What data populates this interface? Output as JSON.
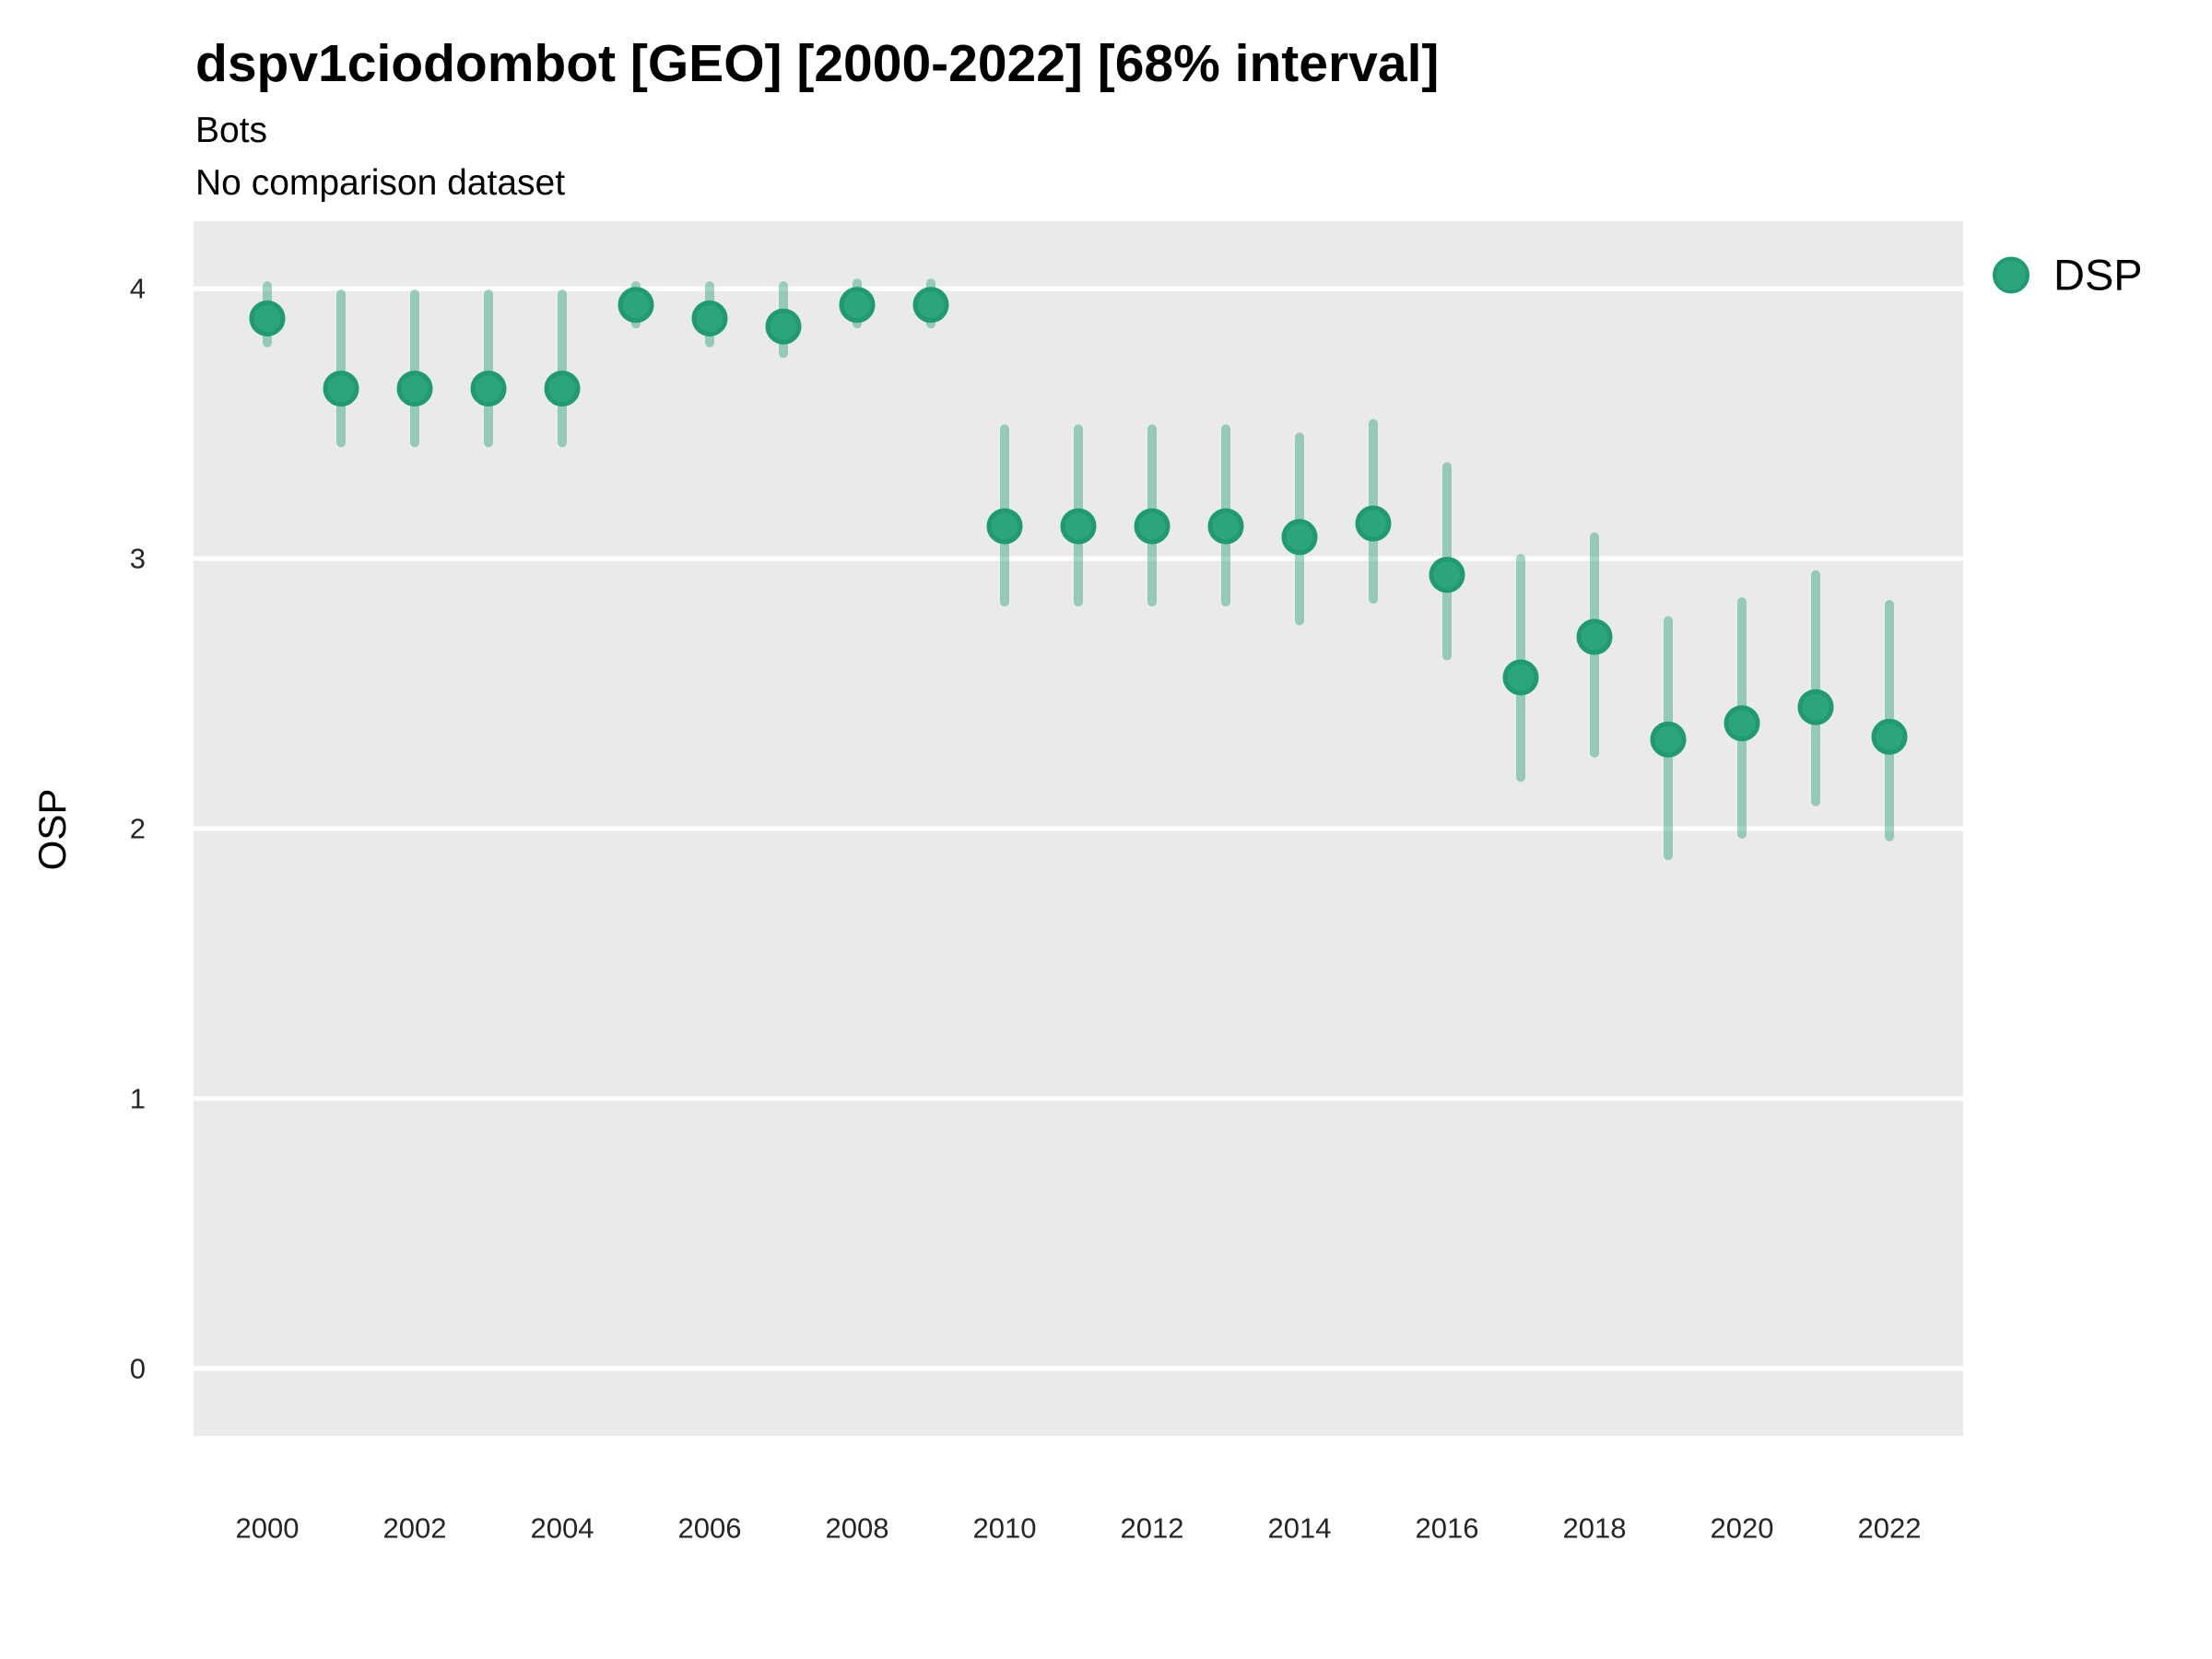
{
  "header": {
    "title": "dspv1ciodombot [GEO] [2000-2022] [68% interval]",
    "subtitle": "Bots",
    "note": "No comparison dataset"
  },
  "legend": {
    "position": "right-top",
    "items": [
      {
        "label": "DSP",
        "marker": "circle"
      }
    ]
  },
  "colors": {
    "point_fill": "#2ca47c",
    "point_stroke": "#1f9b72",
    "errorbar_green": "#2ca47c",
    "errorbar_opacity": 0.45,
    "panel_background": "#eaeaea",
    "gridline": "#ffffff",
    "text": "#000000",
    "tick_text": "#262626"
  },
  "chart_data": {
    "type": "scatter",
    "title": "dspv1ciodombot [GEO] [2000-2022] [68% interval]",
    "subtitle": "Bots",
    "note": "No comparison dataset",
    "xlabel": "",
    "ylabel": "OSP",
    "interval": "68%",
    "grid": "major-horizontal-only",
    "legend_position": "right-top",
    "xlim": [
      1999,
      2023
    ],
    "ylim": [
      -0.25,
      4.25
    ],
    "x_tick_labels": [
      "2000",
      "2002",
      "2004",
      "2006",
      "2008",
      "2010",
      "2012",
      "2014",
      "2016",
      "2018",
      "2020",
      "2022"
    ],
    "x_tick_years": [
      2000,
      2002,
      2004,
      2006,
      2008,
      2010,
      2012,
      2014,
      2016,
      2018,
      2020,
      2022
    ],
    "y_tick_labels": [
      "0",
      "1",
      "2",
      "3",
      "4"
    ],
    "y_tick_values": [
      0,
      1,
      2,
      3,
      4
    ],
    "x": [
      2000,
      2001,
      2002,
      2003,
      2004,
      2005,
      2006,
      2007,
      2008,
      2009,
      2010,
      2011,
      2012,
      2013,
      2014,
      2015,
      2016,
      2017,
      2018,
      2019,
      2020,
      2021,
      2022
    ],
    "series": [
      {
        "name": "DSP",
        "values": [
          3.89,
          3.63,
          3.63,
          3.63,
          3.63,
          3.94,
          3.89,
          3.86,
          3.94,
          3.94,
          3.12,
          3.12,
          3.12,
          3.12,
          3.08,
          3.13,
          2.94,
          2.56,
          2.71,
          2.33,
          2.39,
          2.45,
          2.34
        ],
        "interval_low": [
          3.8,
          3.43,
          3.43,
          3.43,
          3.43,
          3.87,
          3.8,
          3.76,
          3.87,
          3.87,
          2.84,
          2.84,
          2.84,
          2.84,
          2.77,
          2.85,
          2.64,
          2.19,
          2.28,
          1.9,
          1.98,
          2.1,
          1.97
        ],
        "interval_high": [
          4.01,
          3.98,
          3.98,
          3.98,
          3.98,
          4.01,
          4.01,
          4.01,
          4.02,
          4.02,
          3.48,
          3.48,
          3.48,
          3.48,
          3.45,
          3.5,
          3.34,
          3.0,
          3.08,
          2.77,
          2.84,
          2.94,
          2.83
        ]
      }
    ]
  }
}
